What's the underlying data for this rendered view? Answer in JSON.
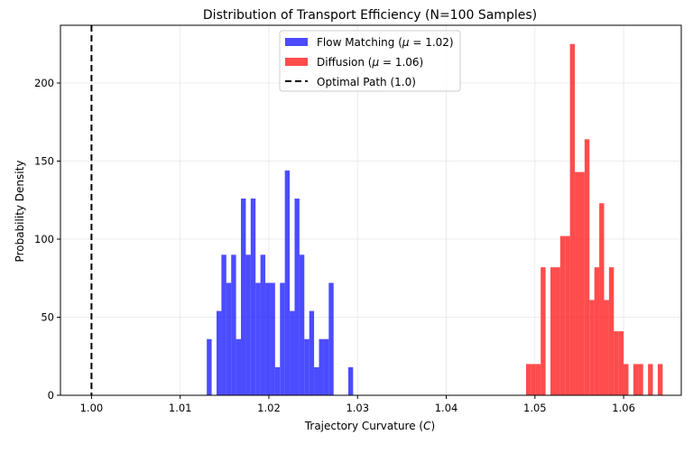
{
  "chart_data": {
    "type": "histogram",
    "title": "Distribution of Transport Efficiency (N=100 Samples)",
    "xlabel": "Trajectory Curvature (",
    "xlabel_symbol": "C",
    "xlabel_suffix": ")",
    "ylabel": "Probability Density",
    "xlim": [
      0.9965,
      1.0665
    ],
    "ylim": [
      0,
      237
    ],
    "xticks": [
      1.0,
      1.01,
      1.02,
      1.03,
      1.04,
      1.05,
      1.06
    ],
    "xtick_labels": [
      "1.00",
      "1.01",
      "1.02",
      "1.03",
      "1.04",
      "1.05",
      "1.06"
    ],
    "yticks": [
      0,
      50,
      100,
      150,
      200
    ],
    "ytick_labels": [
      "0",
      "50",
      "100",
      "150",
      "200"
    ],
    "grid": true,
    "legend_position": "upper-center",
    "series": [
      {
        "name": "Flow Matching",
        "legend_prefix": "Flow Matching (",
        "mu_label": "1.02",
        "color": "#0000ff",
        "alpha": 0.7,
        "bin_width": 0.00055,
        "bins": [
          {
            "x": 1.013,
            "h": 36
          },
          {
            "x": 1.01355,
            "h": 0
          },
          {
            "x": 1.0141,
            "h": 54
          },
          {
            "x": 1.01465,
            "h": 90
          },
          {
            "x": 1.0152,
            "h": 72
          },
          {
            "x": 1.01575,
            "h": 90
          },
          {
            "x": 1.0163,
            "h": 36
          },
          {
            "x": 1.01685,
            "h": 126
          },
          {
            "x": 1.0174,
            "h": 90
          },
          {
            "x": 1.01795,
            "h": 126
          },
          {
            "x": 1.0185,
            "h": 72
          },
          {
            "x": 1.01905,
            "h": 90
          },
          {
            "x": 1.0196,
            "h": 72
          },
          {
            "x": 1.02015,
            "h": 72
          },
          {
            "x": 1.0207,
            "h": 18
          },
          {
            "x": 1.02125,
            "h": 72
          },
          {
            "x": 1.0218,
            "h": 144
          },
          {
            "x": 1.02235,
            "h": 54
          },
          {
            "x": 1.0229,
            "h": 126
          },
          {
            "x": 1.02345,
            "h": 90
          },
          {
            "x": 1.024,
            "h": 36
          },
          {
            "x": 1.02455,
            "h": 54
          },
          {
            "x": 1.0251,
            "h": 18
          },
          {
            "x": 1.02565,
            "h": 36
          },
          {
            "x": 1.0262,
            "h": 36
          },
          {
            "x": 1.02675,
            "h": 72
          },
          {
            "x": 1.02895,
            "h": 18
          }
        ]
      },
      {
        "name": "Diffusion",
        "legend_prefix": "Diffusion (",
        "mu_label": "1.06",
        "color": "#ff0000",
        "alpha": 0.7,
        "bin_width": 0.00055,
        "bins": [
          {
            "x": 1.049,
            "h": 20
          },
          {
            "x": 1.04955,
            "h": 20
          },
          {
            "x": 1.0501,
            "h": 20
          },
          {
            "x": 1.05065,
            "h": 82
          },
          {
            "x": 1.0512,
            "h": 0
          },
          {
            "x": 1.05175,
            "h": 82
          },
          {
            "x": 1.0523,
            "h": 82
          },
          {
            "x": 1.05285,
            "h": 102
          },
          {
            "x": 1.0534,
            "h": 102
          },
          {
            "x": 1.05395,
            "h": 225
          },
          {
            "x": 1.0545,
            "h": 143
          },
          {
            "x": 1.05505,
            "h": 143
          },
          {
            "x": 1.0556,
            "h": 164
          },
          {
            "x": 1.05615,
            "h": 61
          },
          {
            "x": 1.0567,
            "h": 82
          },
          {
            "x": 1.05725,
            "h": 123
          },
          {
            "x": 1.0578,
            "h": 61
          },
          {
            "x": 1.05835,
            "h": 82
          },
          {
            "x": 1.0589,
            "h": 41
          },
          {
            "x": 1.05945,
            "h": 41
          },
          {
            "x": 1.06,
            "h": 20
          },
          {
            "x": 1.0611,
            "h": 20
          },
          {
            "x": 1.06165,
            "h": 20
          },
          {
            "x": 1.06275,
            "h": 20
          },
          {
            "x": 1.0633,
            "h": 0
          },
          {
            "x": 1.06385,
            "h": 20
          }
        ]
      }
    ],
    "reference_line": {
      "name": "Optimal Path (1.0)",
      "x": 1.0,
      "style": "dashed",
      "color": "#000000"
    },
    "mu_symbol": "μ",
    "equals": " = ",
    "close_paren": ")"
  }
}
